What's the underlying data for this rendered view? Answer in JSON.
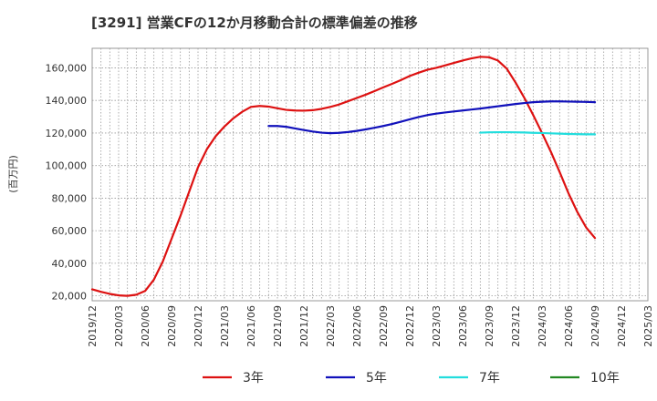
{
  "chart_data": {
    "type": "line",
    "title": "[3291]  営業CFの12か月移動合計の標準偏差の推移",
    "ylabel": "(百万円)",
    "xlabel": "",
    "ylim": [
      17000,
      172000
    ],
    "yticks": [
      20000,
      40000,
      60000,
      80000,
      100000,
      120000,
      140000,
      160000
    ],
    "ytick_labels": [
      "20,000",
      "40,000",
      "60,000",
      "80,000",
      "100,000",
      "120,000",
      "140,000",
      "160,000"
    ],
    "x_start": "2019-12",
    "x_end": "2025-03",
    "xtick_labels": [
      "2019/12",
      "2020/03",
      "2020/06",
      "2020/09",
      "2020/12",
      "2021/03",
      "2021/06",
      "2021/09",
      "2021/12",
      "2022/03",
      "2022/06",
      "2022/09",
      "2022/12",
      "2023/03",
      "2023/06",
      "2023/09",
      "2023/12",
      "2024/03",
      "2024/06",
      "2024/09",
      "2024/12",
      "2025/03"
    ],
    "grid": true,
    "legend_position": "bottom",
    "series": [
      {
        "name": "3年",
        "color": "#dd1111",
        "points": [
          [
            "2019-12",
            24000
          ],
          [
            "2020-01",
            22500
          ],
          [
            "2020-02",
            21200
          ],
          [
            "2020-03",
            20300
          ],
          [
            "2020-04",
            20000
          ],
          [
            "2020-05",
            20700
          ],
          [
            "2020-06",
            23000
          ],
          [
            "2020-07",
            30000
          ],
          [
            "2020-08",
            41000
          ],
          [
            "2020-09",
            55000
          ],
          [
            "2020-10",
            69000
          ],
          [
            "2020-11",
            84000
          ],
          [
            "2020-12",
            99000
          ],
          [
            "2021-01",
            110000
          ],
          [
            "2021-02",
            118000
          ],
          [
            "2021-03",
            124000
          ],
          [
            "2021-04",
            129000
          ],
          [
            "2021-05",
            133000
          ],
          [
            "2021-06",
            136000
          ],
          [
            "2021-07",
            136600
          ],
          [
            "2021-08",
            136200
          ],
          [
            "2021-09",
            135200
          ],
          [
            "2021-10",
            134200
          ],
          [
            "2021-11",
            133800
          ],
          [
            "2021-12",
            133700
          ],
          [
            "2022-01",
            134000
          ],
          [
            "2022-02",
            134800
          ],
          [
            "2022-03",
            136000
          ],
          [
            "2022-04",
            137500
          ],
          [
            "2022-05",
            139500
          ],
          [
            "2022-06",
            141500
          ],
          [
            "2022-07",
            143500
          ],
          [
            "2022-08",
            145700
          ],
          [
            "2022-09",
            148000
          ],
          [
            "2022-10",
            150200
          ],
          [
            "2022-11",
            152500
          ],
          [
            "2022-12",
            155000
          ],
          [
            "2023-01",
            157000
          ],
          [
            "2023-02",
            158800
          ],
          [
            "2023-03",
            160000
          ],
          [
            "2023-04",
            161500
          ],
          [
            "2023-05",
            163000
          ],
          [
            "2023-06",
            164500
          ],
          [
            "2023-07",
            165800
          ],
          [
            "2023-08",
            166800
          ],
          [
            "2023-09",
            166500
          ],
          [
            "2023-10",
            164500
          ],
          [
            "2023-11",
            159500
          ],
          [
            "2023-12",
            151000
          ],
          [
            "2024-01",
            141500
          ],
          [
            "2024-02",
            131000
          ],
          [
            "2024-03",
            120000
          ],
          [
            "2024-04",
            108500
          ],
          [
            "2024-05",
            96000
          ],
          [
            "2024-06",
            83000
          ],
          [
            "2024-07",
            71500
          ],
          [
            "2024-08",
            62000
          ],
          [
            "2024-09",
            55500
          ]
        ]
      },
      {
        "name": "5年",
        "color": "#1111bb",
        "points": [
          [
            "2021-08",
            124300
          ],
          [
            "2021-09",
            124300
          ],
          [
            "2021-10",
            123800
          ],
          [
            "2021-11",
            122800
          ],
          [
            "2021-12",
            121800
          ],
          [
            "2022-01",
            120900
          ],
          [
            "2022-02",
            120200
          ],
          [
            "2022-03",
            119900
          ],
          [
            "2022-04",
            120100
          ],
          [
            "2022-05",
            120600
          ],
          [
            "2022-06",
            121300
          ],
          [
            "2022-07",
            122200
          ],
          [
            "2022-08",
            123200
          ],
          [
            "2022-09",
            124300
          ],
          [
            "2022-10",
            125500
          ],
          [
            "2022-11",
            126900
          ],
          [
            "2022-12",
            128400
          ],
          [
            "2023-01",
            129800
          ],
          [
            "2023-02",
            131000
          ],
          [
            "2023-03",
            131900
          ],
          [
            "2023-04",
            132600
          ],
          [
            "2023-05",
            133200
          ],
          [
            "2023-06",
            133800
          ],
          [
            "2023-07",
            134400
          ],
          [
            "2023-08",
            135000
          ],
          [
            "2023-09",
            135700
          ],
          [
            "2023-10",
            136400
          ],
          [
            "2023-11",
            137100
          ],
          [
            "2023-12",
            137800
          ],
          [
            "2024-01",
            138400
          ],
          [
            "2024-02",
            138900
          ],
          [
            "2024-03",
            139200
          ],
          [
            "2024-04",
            139400
          ],
          [
            "2024-05",
            139400
          ],
          [
            "2024-06",
            139300
          ],
          [
            "2024-07",
            139200
          ],
          [
            "2024-08",
            139100
          ],
          [
            "2024-09",
            138900
          ]
        ]
      },
      {
        "name": "7年",
        "color": "#22dddd",
        "points": [
          [
            "2023-08",
            120200
          ],
          [
            "2023-09",
            120400
          ],
          [
            "2023-10",
            120500
          ],
          [
            "2023-11",
            120500
          ],
          [
            "2023-12",
            120400
          ],
          [
            "2024-01",
            120300
          ],
          [
            "2024-02",
            120100
          ],
          [
            "2024-03",
            120000
          ],
          [
            "2024-04",
            119800
          ],
          [
            "2024-05",
            119600
          ],
          [
            "2024-06",
            119400
          ],
          [
            "2024-07",
            119300
          ],
          [
            "2024-08",
            119200
          ],
          [
            "2024-09",
            119200
          ]
        ]
      },
      {
        "name": "10年",
        "color": "#228822",
        "points": []
      }
    ]
  }
}
